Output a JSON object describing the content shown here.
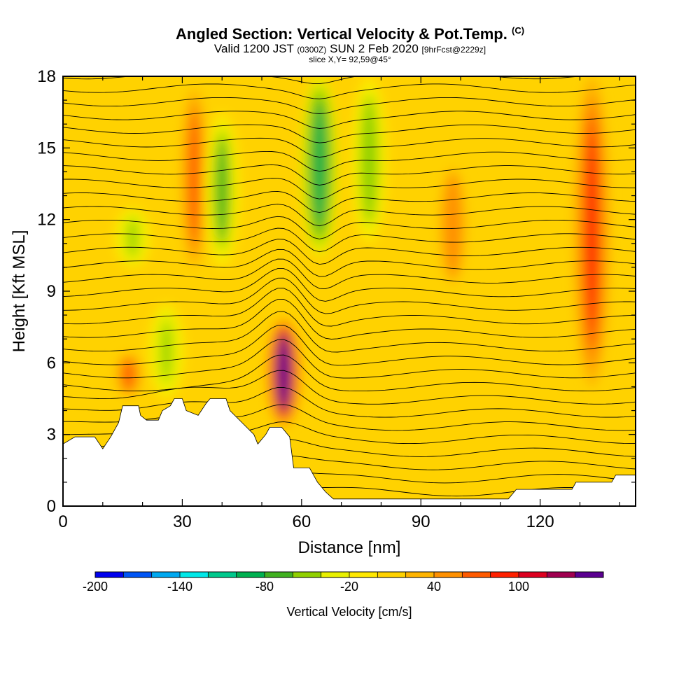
{
  "title": "Angled Section: Vertical Velocity & Pot.Temp.",
  "title_suffix": "(C)",
  "subtitle_main_a": "Valid 1200 JST",
  "subtitle_small_a": "(0300Z)",
  "subtitle_main_b": "SUN 2 Feb 2020",
  "subtitle_small_b": "[9hrFcst@2229z]",
  "slice_text": "slice X,Y= 92,59@45°",
  "chart_data": {
    "type": "heatmap",
    "xlabel": "Distance [nm]",
    "ylabel": "Height [Kft MSL]",
    "xlim": [
      0,
      144
    ],
    "ylim": [
      0,
      18
    ],
    "x_ticks": [
      0,
      30,
      60,
      90,
      120
    ],
    "y_ticks": [
      0,
      3,
      6,
      9,
      12,
      15,
      18
    ],
    "colorbar_label": "Vertical Velocity [cm/s]",
    "colorbar_ticks": [
      -200,
      -140,
      -80,
      -20,
      40,
      100
    ],
    "colorbar_levels": [
      {
        "from": -200,
        "to": -180,
        "color": "#0000ee"
      },
      {
        "from": -180,
        "to": -160,
        "color": "#0055f5"
      },
      {
        "from": -160,
        "to": -140,
        "color": "#00a8f0"
      },
      {
        "from": -140,
        "to": -120,
        "color": "#00e8e8"
      },
      {
        "from": -120,
        "to": -100,
        "color": "#00c88c"
      },
      {
        "from": -100,
        "to": -80,
        "color": "#00b050"
      },
      {
        "from": -80,
        "to": -60,
        "color": "#40b020"
      },
      {
        "from": -60,
        "to": -40,
        "color": "#90d000"
      },
      {
        "from": -40,
        "to": -20,
        "color": "#e8f000"
      },
      {
        "from": -20,
        "to": 0,
        "color": "#ffe800"
      },
      {
        "from": 0,
        "to": 20,
        "color": "#ffd200"
      },
      {
        "from": 20,
        "to": 40,
        "color": "#ffb400"
      },
      {
        "from": 40,
        "to": 60,
        "color": "#ff9000"
      },
      {
        "from": 60,
        "to": 80,
        "color": "#ff5a00"
      },
      {
        "from": 80,
        "to": 100,
        "color": "#ff2000"
      },
      {
        "from": 100,
        "to": 120,
        "color": "#dd0020"
      },
      {
        "from": 120,
        "to": 140,
        "color": "#a00050"
      },
      {
        "from": 140,
        "to": 160,
        "color": "#5a0090"
      }
    ],
    "series": [
      {
        "kind": "updraft",
        "x": 55.5,
        "y_bottom": 3.3,
        "y_top": 7.9,
        "peak": 150
      },
      {
        "kind": "updraft",
        "x": 133,
        "y_bottom": 5.0,
        "y_top": 18,
        "peak": 90
      },
      {
        "kind": "updraft",
        "x": 33,
        "y_bottom": 9.5,
        "y_top": 18,
        "peak": 60
      },
      {
        "kind": "updraft",
        "x": 16.5,
        "y_bottom": 4.5,
        "y_top": 6.5,
        "peak": 70
      },
      {
        "kind": "updraft",
        "x": 98,
        "y_bottom": 9.0,
        "y_top": 14.5,
        "peak": 50
      },
      {
        "kind": "downdraft",
        "x": 64.5,
        "y_bottom": 10.5,
        "y_top": 18,
        "peak": -90
      },
      {
        "kind": "downdraft",
        "x": 40,
        "y_bottom": 10.0,
        "y_top": 16.5,
        "peak": -70
      },
      {
        "kind": "downdraft",
        "x": 26,
        "y_bottom": 4.5,
        "y_top": 8.5,
        "peak": -50
      },
      {
        "kind": "downdraft",
        "x": 77,
        "y_bottom": 11.0,
        "y_top": 18,
        "peak": -55
      },
      {
        "kind": "downdraft",
        "x": 17.5,
        "y_bottom": 10.0,
        "y_top": 12.5,
        "peak": -50
      }
    ],
    "terrain_kft": [
      [
        0,
        2.6
      ],
      [
        3,
        2.9
      ],
      [
        8,
        2.9
      ],
      [
        10,
        2.4
      ],
      [
        12,
        2.9
      ],
      [
        14,
        3.5
      ],
      [
        15,
        4.2
      ],
      [
        19,
        4.2
      ],
      [
        19.5,
        3.8
      ],
      [
        21,
        3.6
      ],
      [
        24,
        3.6
      ],
      [
        25,
        4.0
      ],
      [
        27,
        4.2
      ],
      [
        28,
        4.5
      ],
      [
        30,
        4.5
      ],
      [
        31,
        4.0
      ],
      [
        34,
        3.8
      ],
      [
        36,
        4.3
      ],
      [
        37,
        4.5
      ],
      [
        41,
        4.5
      ],
      [
        42,
        4.0
      ],
      [
        45,
        3.5
      ],
      [
        48,
        3.0
      ],
      [
        49,
        2.6
      ],
      [
        51,
        3.0
      ],
      [
        52,
        3.3
      ],
      [
        55,
        3.3
      ],
      [
        57,
        2.9
      ],
      [
        58,
        1.6
      ],
      [
        62,
        1.6
      ],
      [
        64,
        1.0
      ],
      [
        66,
        0.6
      ],
      [
        68,
        0.3
      ],
      [
        112,
        0.3
      ],
      [
        114,
        0.7
      ],
      [
        128,
        0.7
      ],
      [
        129,
        1.0
      ],
      [
        138,
        1.0
      ],
      [
        139,
        1.3
      ],
      [
        144,
        1.3
      ]
    ],
    "theta_contours": {
      "color": "#000000",
      "count": 32
    },
    "updraft_colors": {
      "weak": "#ffd200",
      "moderate": "#ff9000",
      "strong": "#ff2000",
      "extreme": "#5a0090"
    }
  }
}
